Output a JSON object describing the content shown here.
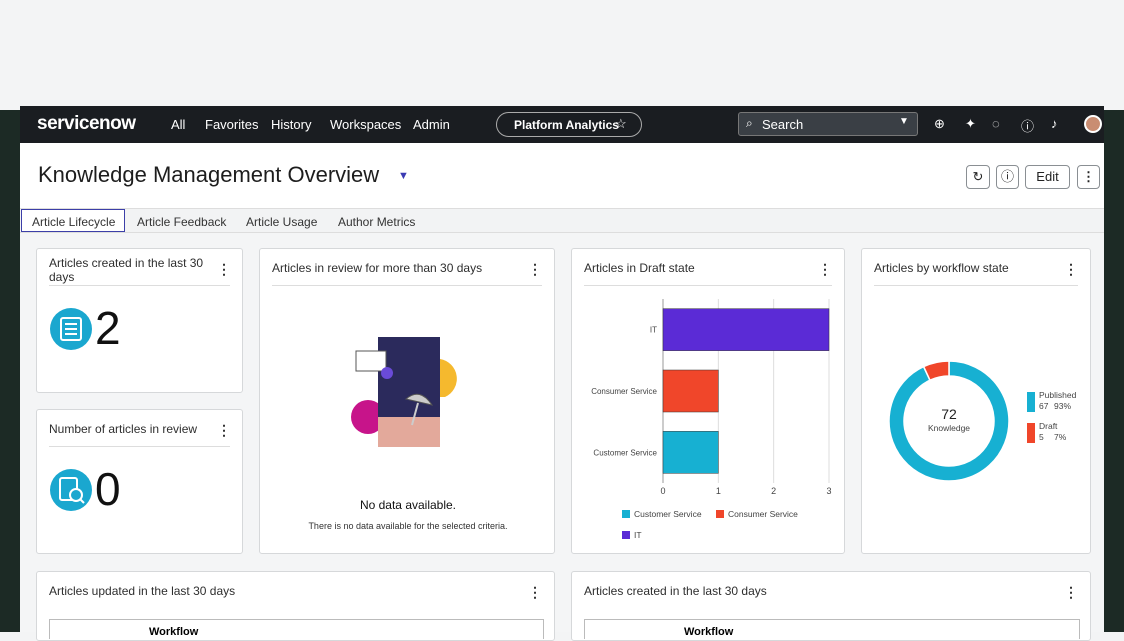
{
  "nav": {
    "logo": "servicenow",
    "menu": [
      "All",
      "Favorites",
      "History",
      "Workspaces",
      "Admin"
    ],
    "workspace": "Platform Analytics",
    "search": "Search"
  },
  "header": {
    "title": "Knowledge Management Overview",
    "edit": "Edit"
  },
  "tabs": [
    "Article Lifecycle",
    "Article Feedback",
    "Article Usage",
    "Author Metrics"
  ],
  "widgets": {
    "created": {
      "title": "Articles created in the last 30 days",
      "value": 2
    },
    "in_review": {
      "title": "Number of articles in review",
      "value": 0
    },
    "review_30": {
      "title": "Articles in review for more than 30 days",
      "empty_title": "No data available.",
      "empty_text": "There is no data available for the selected criteria."
    },
    "draft": {
      "title": "Articles in Draft state",
      "chart_data": {
        "type": "bar",
        "orientation": "horizontal",
        "categories": [
          "IT",
          "Consumer Service",
          "Customer Service"
        ],
        "values": [
          3,
          1,
          1
        ],
        "colors": [
          "#5b2bd6",
          "#f0462a",
          "#17b0d2"
        ],
        "xlim": [
          0,
          3
        ],
        "xticks": [
          0,
          1,
          2,
          3
        ],
        "grid": true
      }
    },
    "workflow": {
      "title": "Articles by workflow state",
      "chart_data": {
        "type": "donut",
        "categories": [
          "Published",
          "Draft"
        ],
        "values": [
          67,
          5
        ],
        "value_labels": [
          "93%",
          "7%"
        ],
        "colors": [
          "#17b0d2",
          "#f0462a"
        ],
        "total": 72,
        "total_label": "Knowledge"
      }
    },
    "updated": {
      "title": "Articles updated in the last 30 days",
      "table": {
        "columns": [
          "Workflow"
        ]
      }
    },
    "created_table": {
      "title": "Articles created in the last 30 days",
      "table": {
        "columns": [
          "Workflow"
        ]
      }
    }
  }
}
